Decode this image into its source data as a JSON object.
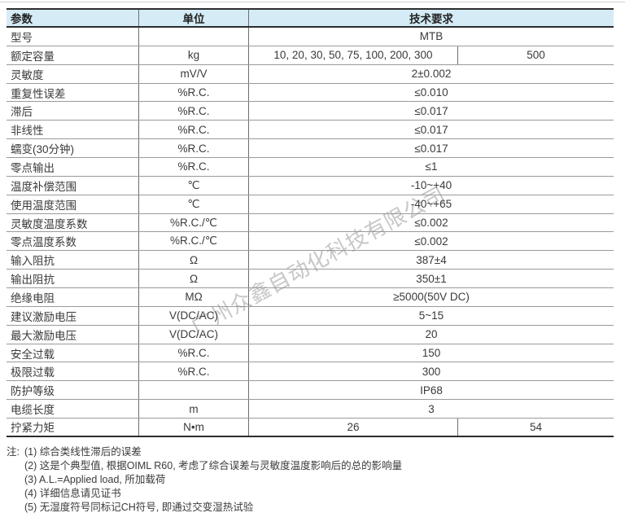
{
  "watermark": "广州众鑫自动化科技有限公司",
  "table": {
    "headers": {
      "param": "参数",
      "unit": "单位",
      "requirement": "技术要求"
    },
    "rows": [
      {
        "param": "型号",
        "unit": "",
        "value": "MTB"
      },
      {
        "param": "额定容量",
        "unit": "kg",
        "value_a": "10, 20, 30, 50, 75, 100, 200, 300",
        "value_b": "500"
      },
      {
        "param": "灵敏度",
        "unit": "mV/V",
        "value": "2±0.002"
      },
      {
        "param": "重复性误差",
        "unit": "%R.C.",
        "value": "≤0.010"
      },
      {
        "param": "滞后",
        "unit": "%R.C.",
        "value": "≤0.017"
      },
      {
        "param": "非线性",
        "unit": "%R.C.",
        "value": "≤0.017"
      },
      {
        "param": "蠕变(30分钟)",
        "unit": "%R.C.",
        "value": "≤0.017"
      },
      {
        "param": "零点输出",
        "unit": "%R.C.",
        "value": "≤1"
      },
      {
        "param": "温度补偿范围",
        "unit": "℃",
        "value": "-10~+40"
      },
      {
        "param": "使用温度范围",
        "unit": "℃",
        "value": "-40~+65"
      },
      {
        "param": "灵敏度温度系数",
        "unit": "%R.C./℃",
        "value": "≤0.002"
      },
      {
        "param": "零点温度系数",
        "unit": "%R.C./℃",
        "value": "≤0.002"
      },
      {
        "param": "输入阻抗",
        "unit": "Ω",
        "value": "387±4"
      },
      {
        "param": "输出阻抗",
        "unit": "Ω",
        "value": "350±1"
      },
      {
        "param": "绝缘电阻",
        "unit": "MΩ",
        "value": "≥5000(50V DC)"
      },
      {
        "param": "建议激励电压",
        "unit": "V(DC/AC)",
        "value": "5~15"
      },
      {
        "param": "最大激励电压",
        "unit": "V(DC/AC)",
        "value": "20"
      },
      {
        "param": "安全过载",
        "unit": "%R.C.",
        "value": "150"
      },
      {
        "param": "极限过载",
        "unit": "%R.C.",
        "value": "300"
      },
      {
        "param": "防护等级",
        "unit": "",
        "value": "IP68"
      },
      {
        "param": "电缆长度",
        "unit": "m",
        "value": "3"
      },
      {
        "param": "拧紧力矩",
        "unit": "N•m",
        "value_a": "26",
        "value_b": "54"
      }
    ]
  },
  "notes": {
    "prefix": "注:",
    "items": [
      "(1) 综合类线性滞后的误差",
      "(2) 这是个典型值, 根据OIML R60, 考虑了综合误差与灵敏度温度影响后的总的影响量",
      "(3) A.L.=Applied load, 所加载荷",
      "(4) 详细信息请见证书",
      "(5) 无湿度符号同标记CH符号, 即通过交变湿热试验"
    ]
  },
  "colors": {
    "header_bg": "#d5ecf7",
    "border_dark": "#2d2d2d",
    "border_light": "#9a9a9a",
    "divider": "#6e6e6e",
    "text": "#3a3a3a",
    "watermark": "#c7c7c7"
  }
}
